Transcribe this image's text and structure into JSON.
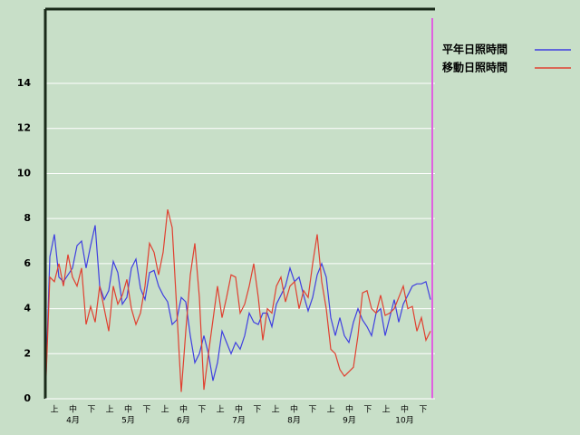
{
  "chart_data": {
    "type": "line",
    "dekads": [
      "上",
      "中",
      "下",
      "上",
      "中",
      "下",
      "上",
      "中",
      "下",
      "上",
      "中",
      "下",
      "上",
      "中",
      "下",
      "上",
      "中",
      "下",
      "上",
      "中",
      "下"
    ],
    "months": [
      "4月",
      "5月",
      "6月",
      "7月",
      "8月",
      "9月",
      "10月"
    ],
    "ylim": [
      0,
      17.3
    ],
    "yticks": [
      0,
      2,
      4,
      6,
      8,
      10,
      12,
      14
    ],
    "grid": true,
    "legend": "top-right",
    "series": [
      {
        "name": "平年日照時間",
        "color": "#3f3fe0",
        "values": [
          0,
          6.3,
          7.3,
          5.4,
          5.2,
          5.5,
          5.8,
          6.8,
          7.0,
          5.8,
          6.8,
          7.7,
          5.0,
          4.4,
          4.8,
          6.1,
          5.6,
          4.2,
          4.5,
          5.8,
          6.2,
          4.9,
          4.4,
          5.6,
          5.7,
          5.0,
          4.6,
          4.3,
          3.3,
          3.5,
          4.5,
          4.3,
          2.8,
          1.6,
          2.0,
          2.8,
          2.0,
          0.8,
          1.6,
          3.0,
          2.5,
          2.0,
          2.5,
          2.2,
          2.8,
          3.8,
          3.4,
          3.3,
          3.8,
          3.8,
          3.2,
          4.2,
          4.6,
          5.0,
          5.8,
          5.2,
          5.4,
          4.6,
          3.9,
          4.5,
          5.5,
          6.0,
          5.4,
          3.6,
          2.8,
          3.6,
          2.8,
          2.5,
          3.4,
          4.0,
          3.5,
          3.2,
          2.8,
          3.8,
          4.0,
          2.8,
          3.6,
          4.4,
          3.4,
          4.2,
          4.6,
          5.0,
          5.1,
          5.1,
          5.2,
          4.4
        ]
      },
      {
        "name": "移動日照時間",
        "color": "#e04030",
        "values": [
          0,
          5.4,
          5.2,
          6.0,
          5.0,
          6.4,
          5.4,
          5.0,
          5.8,
          3.3,
          4.1,
          3.4,
          5.0,
          4.0,
          3.0,
          5.0,
          4.2,
          4.6,
          5.3,
          4.0,
          3.3,
          3.8,
          5.0,
          6.9,
          6.5,
          5.5,
          6.5,
          8.4,
          7.6,
          4.0,
          0.3,
          3.0,
          5.5,
          6.9,
          4.5,
          0.4,
          2.0,
          3.5,
          5.0,
          3.6,
          4.5,
          5.5,
          5.4,
          3.8,
          4.2,
          5.0,
          6.0,
          4.5,
          2.6,
          4.0,
          3.8,
          5.0,
          5.4,
          4.3,
          5.0,
          5.2,
          4.0,
          4.8,
          4.5,
          6.0,
          7.3,
          5.2,
          4.0,
          2.2,
          2.0,
          1.3,
          1.0,
          1.2,
          1.4,
          2.8,
          4.7,
          4.8,
          4.0,
          3.8,
          4.6,
          3.7,
          3.8,
          4.0,
          4.5,
          5.0,
          4.0,
          4.1,
          3.0,
          3.6,
          2.6,
          3.0
        ]
      }
    ]
  }
}
